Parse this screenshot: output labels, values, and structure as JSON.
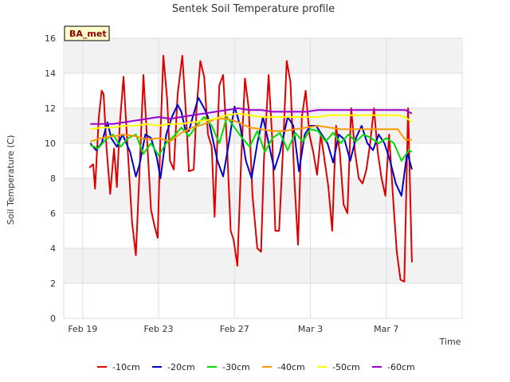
{
  "chart_data": {
    "type": "line",
    "title": "Sentek Soil Temperature profile",
    "site_tag": "BA_met",
    "xlabel": "Time",
    "ylabel": "Soil Temperature (C)",
    "xlim": [
      -1.0,
      20.0
    ],
    "ylim": [
      0,
      16
    ],
    "yticks": [
      0,
      2,
      4,
      6,
      8,
      10,
      12,
      14,
      16
    ],
    "xticks": [
      {
        "value": 0,
        "label": "Feb 19"
      },
      {
        "value": 4,
        "label": "Feb 23"
      },
      {
        "value": 8,
        "label": "Feb 27"
      },
      {
        "value": 12,
        "label": "Mar 3"
      },
      {
        "value": 16,
        "label": "Mar 7"
      }
    ],
    "grid": true,
    "legend_position": "bottom",
    "series": [
      {
        "name": "-10cm",
        "color": "#dd0000",
        "x": [
          0.35,
          0.55,
          0.65,
          0.85,
          1.0,
          1.1,
          1.25,
          1.45,
          1.65,
          1.8,
          1.95,
          2.15,
          2.35,
          2.6,
          2.8,
          3.0,
          3.2,
          3.35,
          3.6,
          3.8,
          3.95,
          4.1,
          4.25,
          4.45,
          4.6,
          4.8,
          5.0,
          5.25,
          5.45,
          5.6,
          5.85,
          6.0,
          6.2,
          6.4,
          6.6,
          6.8,
          6.95,
          7.2,
          7.4,
          7.6,
          7.8,
          7.95,
          8.15,
          8.35,
          8.55,
          8.75,
          8.95,
          9.2,
          9.4,
          9.55,
          9.8,
          10.0,
          10.15,
          10.35,
          10.55,
          10.75,
          10.95,
          11.15,
          11.35,
          11.55,
          11.75,
          11.95,
          12.15,
          12.35,
          12.55,
          12.75,
          12.95,
          13.15,
          13.35,
          13.55,
          13.75,
          13.95,
          14.15,
          14.35,
          14.55,
          14.75,
          14.95,
          15.15,
          15.35,
          15.55,
          15.75,
          15.95,
          16.15,
          16.35,
          16.55,
          16.75,
          16.95,
          17.15,
          17.35
        ],
        "values": [
          8.6,
          8.8,
          7.4,
          11.5,
          13.0,
          12.8,
          9.8,
          7.1,
          9.7,
          7.5,
          11.0,
          13.8,
          10.0,
          5.5,
          3.6,
          8.5,
          13.9,
          11.0,
          6.2,
          5.2,
          4.6,
          10.5,
          15.0,
          12.5,
          9.0,
          8.5,
          12.8,
          15.0,
          11.5,
          8.4,
          8.5,
          12.0,
          14.7,
          13.8,
          10.5,
          9.8,
          5.8,
          13.3,
          13.9,
          10.0,
          5.0,
          4.5,
          3.0,
          9.0,
          13.7,
          12.0,
          7.0,
          4.0,
          3.8,
          9.0,
          13.9,
          10.0,
          5.0,
          5.0,
          9.5,
          14.7,
          13.5,
          8.0,
          4.2,
          11.5,
          13.0,
          10.5,
          9.5,
          8.2,
          10.5,
          9.0,
          7.5,
          5.0,
          11.0,
          9.5,
          6.5,
          6.0,
          12.0,
          9.5,
          8.0,
          7.7,
          8.5,
          10.0,
          12.0,
          9.5,
          8.0,
          7.0,
          10.5,
          7.0,
          3.8,
          2.2,
          2.1,
          12.0,
          3.2
        ]
      },
      {
        "name": "-20cm",
        "color": "#0000cc",
        "x": [
          0.4,
          0.7,
          1.0,
          1.3,
          1.5,
          1.8,
          2.1,
          2.5,
          2.8,
          3.0,
          3.3,
          3.6,
          3.9,
          4.1,
          4.4,
          4.7,
          5.0,
          5.2,
          5.4,
          5.6,
          5.8,
          6.1,
          6.4,
          6.6,
          6.8,
          7.1,
          7.4,
          7.7,
          8.0,
          8.3,
          8.6,
          8.9,
          9.2,
          9.5,
          9.8,
          10.1,
          10.4,
          10.8,
          11.1,
          11.4,
          11.7,
          12.0,
          12.3,
          12.6,
          12.9,
          13.2,
          13.5,
          13.8,
          14.1,
          14.4,
          14.7,
          15.0,
          15.3,
          15.6,
          15.9,
          16.2,
          16.5,
          16.8,
          17.1,
          17.35
        ],
        "values": [
          10.0,
          9.6,
          10.0,
          11.2,
          10.3,
          9.8,
          10.5,
          9.5,
          8.1,
          8.8,
          10.5,
          10.3,
          9.2,
          8.0,
          10.5,
          11.5,
          12.2,
          11.8,
          10.8,
          10.7,
          11.5,
          12.6,
          12.0,
          11.5,
          10.5,
          9.0,
          8.1,
          10.0,
          12.1,
          11.0,
          9.0,
          8.0,
          10.0,
          11.5,
          10.0,
          8.5,
          9.5,
          11.5,
          11.0,
          8.4,
          10.5,
          11.0,
          11.0,
          10.5,
          10.0,
          8.9,
          10.5,
          10.2,
          9.0,
          10.3,
          11.0,
          10.0,
          9.6,
          10.5,
          10.0,
          9.0,
          7.7,
          7.0,
          9.5,
          8.5
        ]
      },
      {
        "name": "-30cm",
        "color": "#00dd00",
        "x": [
          0.4,
          0.8,
          1.2,
          1.6,
          2.0,
          2.4,
          2.8,
          3.2,
          3.6,
          4.0,
          4.4,
          4.8,
          5.2,
          5.6,
          6.0,
          6.4,
          6.8,
          7.2,
          7.6,
          8.0,
          8.4,
          8.8,
          9.2,
          9.6,
          10.0,
          10.4,
          10.8,
          11.2,
          11.6,
          12.0,
          12.4,
          12.8,
          13.2,
          13.6,
          14.0,
          14.4,
          14.8,
          15.2,
          15.6,
          16.0,
          16.4,
          16.8,
          17.2,
          17.35
        ],
        "values": [
          9.9,
          9.7,
          10.2,
          10.5,
          9.8,
          10.3,
          10.5,
          9.4,
          10.0,
          9.3,
          10.0,
          10.4,
          10.9,
          10.4,
          11.0,
          11.5,
          11.0,
          10.0,
          11.5,
          10.9,
          10.3,
          9.8,
          10.7,
          9.5,
          10.3,
          10.6,
          9.6,
          10.6,
          10.1,
          10.8,
          10.7,
          10.1,
          10.6,
          10.0,
          10.5,
          10.1,
          10.5,
          10.3,
          10.0,
          10.3,
          10.0,
          9.0,
          9.6,
          9.5
        ]
      },
      {
        "name": "-40cm",
        "color": "#ff9900",
        "x": [
          0.4,
          1.0,
          1.6,
          2.2,
          2.8,
          3.4,
          4.0,
          4.6,
          5.2,
          5.8,
          6.4,
          7.0,
          7.6,
          8.2,
          8.8,
          9.4,
          10.0,
          10.6,
          11.2,
          11.8,
          12.4,
          13.0,
          13.6,
          14.2,
          14.8,
          15.4,
          16.0,
          16.6,
          17.0,
          17.35
        ],
        "values": [
          10.1,
          10.3,
          10.4,
          10.5,
          10.4,
          10.2,
          10.3,
          10.1,
          10.6,
          10.9,
          11.1,
          11.4,
          11.4,
          11.2,
          10.9,
          10.8,
          10.7,
          10.7,
          10.8,
          10.9,
          11.0,
          10.9,
          10.8,
          10.8,
          10.8,
          10.8,
          10.8,
          10.8,
          10.2,
          10.2
        ]
      },
      {
        "name": "-50cm",
        "color": "#ffff00",
        "x": [
          0.4,
          1.0,
          1.6,
          2.2,
          2.8,
          3.4,
          4.0,
          4.6,
          5.2,
          5.8,
          6.4,
          7.0,
          7.6,
          8.2,
          8.8,
          9.4,
          10.0,
          10.6,
          11.2,
          11.8,
          12.4,
          13.0,
          13.6,
          14.2,
          14.8,
          15.4,
          16.0,
          16.6,
          17.0,
          17.35
        ],
        "values": [
          10.8,
          10.9,
          10.9,
          11.0,
          11.0,
          11.1,
          11.0,
          11.1,
          11.1,
          11.2,
          11.3,
          11.4,
          11.6,
          11.7,
          11.6,
          11.5,
          11.5,
          11.5,
          11.5,
          11.5,
          11.5,
          11.6,
          11.6,
          11.6,
          11.6,
          11.6,
          11.6,
          11.6,
          11.5,
          11.2
        ]
      },
      {
        "name": "-60cm",
        "color": "#9900cc",
        "x": [
          0.4,
          1.0,
          1.6,
          2.2,
          2.8,
          3.4,
          4.0,
          4.6,
          5.2,
          5.8,
          6.4,
          7.0,
          7.6,
          8.2,
          8.8,
          9.4,
          10.0,
          10.6,
          11.2,
          11.8,
          12.4,
          13.0,
          13.6,
          14.2,
          14.8,
          15.4,
          16.0,
          16.6,
          17.0,
          17.35
        ],
        "values": [
          11.1,
          11.1,
          11.1,
          11.2,
          11.3,
          11.4,
          11.5,
          11.4,
          11.5,
          11.6,
          11.7,
          11.8,
          11.9,
          12.0,
          11.9,
          11.9,
          11.8,
          11.8,
          11.8,
          11.8,
          11.9,
          11.9,
          11.9,
          11.9,
          11.9,
          11.9,
          11.9,
          11.9,
          11.9,
          11.7
        ]
      }
    ]
  }
}
